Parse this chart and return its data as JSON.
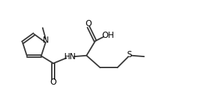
{
  "background_color": "#ffffff",
  "line_color": "#3a3a3a",
  "text_color": "#000000",
  "line_width": 1.4,
  "font_size": 8.5,
  "figsize": [
    2.88,
    1.54
  ],
  "dpi": 100,
  "xlim": [
    0.0,
    10.0
  ],
  "ylim": [
    0.0,
    5.4
  ]
}
